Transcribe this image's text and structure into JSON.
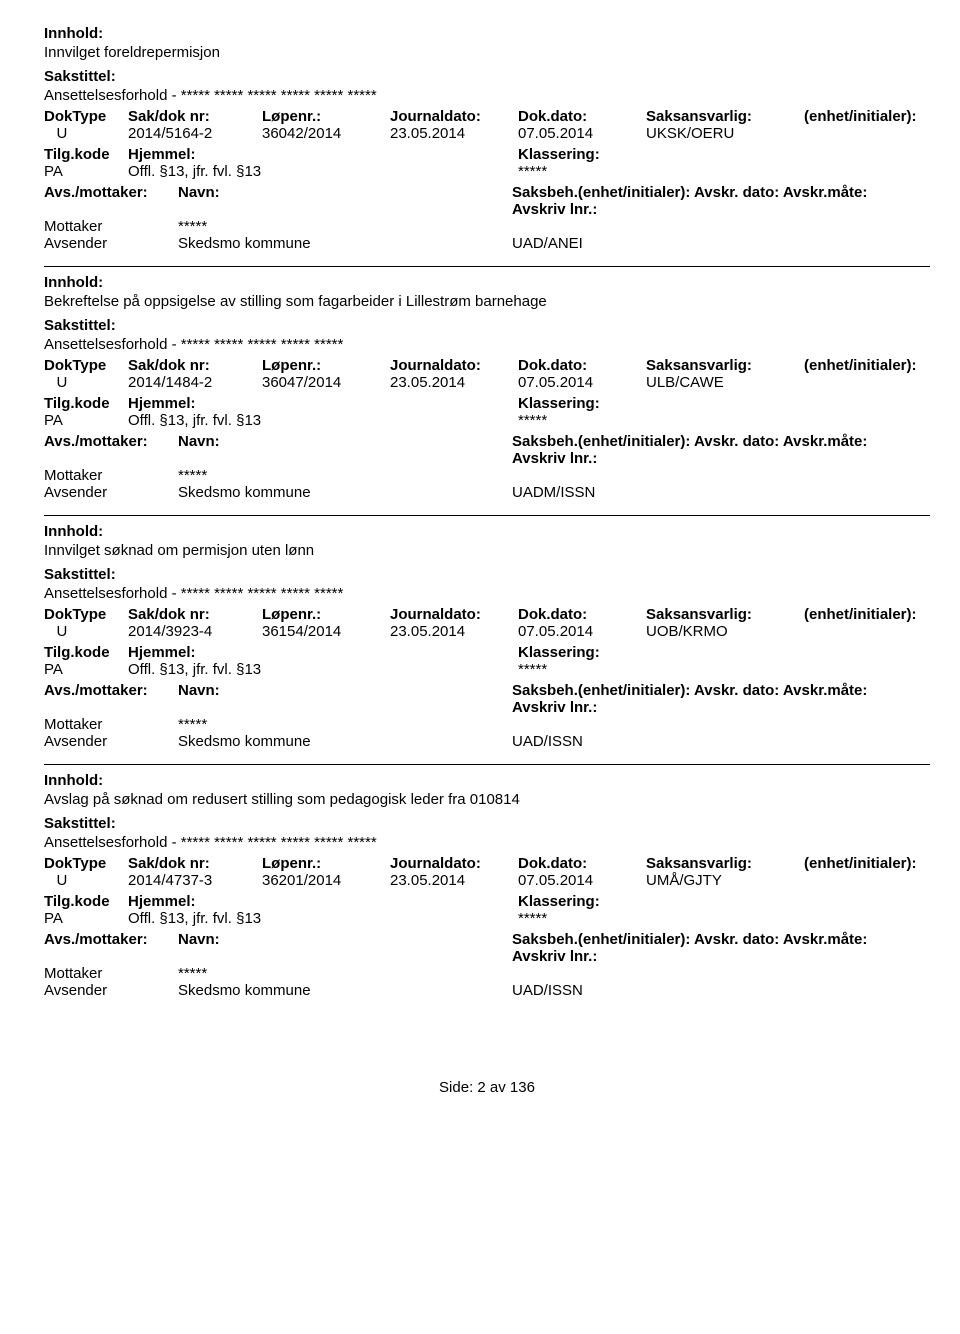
{
  "labels": {
    "innhold": "Innhold:",
    "sakstittel": "Sakstittel:",
    "doktype": "DokType",
    "sakdok": "Sak/dok nr:",
    "lopenr": "Løpenr.:",
    "journaldato": "Journaldato:",
    "dokdato": "Dok.dato:",
    "saksansvarlig": "Saksansvarlig:",
    "enhet": "(enhet/initialer):",
    "tilgkode": "Tilg.kode",
    "hjemmel": "Hjemmel:",
    "klassering": "Klassering:",
    "avsmottaker": "Avs./mottaker:",
    "navn": "Navn:",
    "saksbeh_enhet": "Saksbeh.(enhet/initialer):",
    "avskrdato": "Avskr. dato:",
    "avskrmaate": "Avskr.måte:",
    "avskrlnr": "Avskriv lnr.:",
    "mottaker": "Mottaker",
    "avsender": "Avsender"
  },
  "style": {
    "font_family": "Arial, Helvetica, sans-serif",
    "font_size_pt": 11,
    "text_color": "#000000",
    "background_color": "#ffffff",
    "divider_color": "#000000"
  },
  "records": [
    {
      "innhold": "Innvilget foreldrepermisjon",
      "sakstittel": "Ansettelsesforhold - ***** ***** ***** ***** ***** *****",
      "doktype": "U",
      "sakdok": "2014/5164-2",
      "lopenr": "36042/2014",
      "journaldato": "23.05.2014",
      "dokdato": "07.05.2014",
      "saksansvarlig": "UKSK/OERU",
      "tilgkode": "PA",
      "hjemmel": "Offl. §13, jfr. fvl. §13",
      "klassering": "*****",
      "mottaker_party": "*****",
      "avsender_party": "Skedsmo kommune",
      "code_line": "UAD/ANEI"
    },
    {
      "innhold": "Bekreftelse på oppsigelse av stilling som fagarbeider i Lillestrøm barnehage",
      "sakstittel": "Ansettelsesforhold - ***** ***** ***** ***** *****",
      "doktype": "U",
      "sakdok": "2014/1484-2",
      "lopenr": "36047/2014",
      "journaldato": "23.05.2014",
      "dokdato": "07.05.2014",
      "saksansvarlig": "ULB/CAWE",
      "tilgkode": "PA",
      "hjemmel": "Offl. §13, jfr. fvl. §13",
      "klassering": "*****",
      "mottaker_party": "*****",
      "avsender_party": "Skedsmo kommune",
      "code_line": "UADM/ISSN"
    },
    {
      "innhold": "Innvilget søknad om permisjon uten lønn",
      "sakstittel": "Ansettelsesforhold - ***** ***** ***** ***** *****",
      "doktype": "U",
      "sakdok": "2014/3923-4",
      "lopenr": "36154/2014",
      "journaldato": "23.05.2014",
      "dokdato": "07.05.2014",
      "saksansvarlig": "UOB/KRMO",
      "tilgkode": "PA",
      "hjemmel": "Offl. §13, jfr. fvl. §13",
      "klassering": "*****",
      "mottaker_party": "*****",
      "avsender_party": "Skedsmo kommune",
      "code_line": "UAD/ISSN"
    },
    {
      "innhold": "Avslag på søknad om redusert stilling som pedagogisk leder fra 010814",
      "sakstittel": "Ansettelsesforhold - ***** ***** ***** ***** ***** *****",
      "doktype": "U",
      "sakdok": "2014/4737-3",
      "lopenr": "36201/2014",
      "journaldato": "23.05.2014",
      "dokdato": "07.05.2014",
      "saksansvarlig": "UMÅ/GJTY",
      "tilgkode": "PA",
      "hjemmel": "Offl. §13, jfr. fvl. §13",
      "klassering": "*****",
      "mottaker_party": "*****",
      "avsender_party": "Skedsmo kommune",
      "code_line": "UAD/ISSN"
    }
  ],
  "footer": "Side: 2 av 136"
}
